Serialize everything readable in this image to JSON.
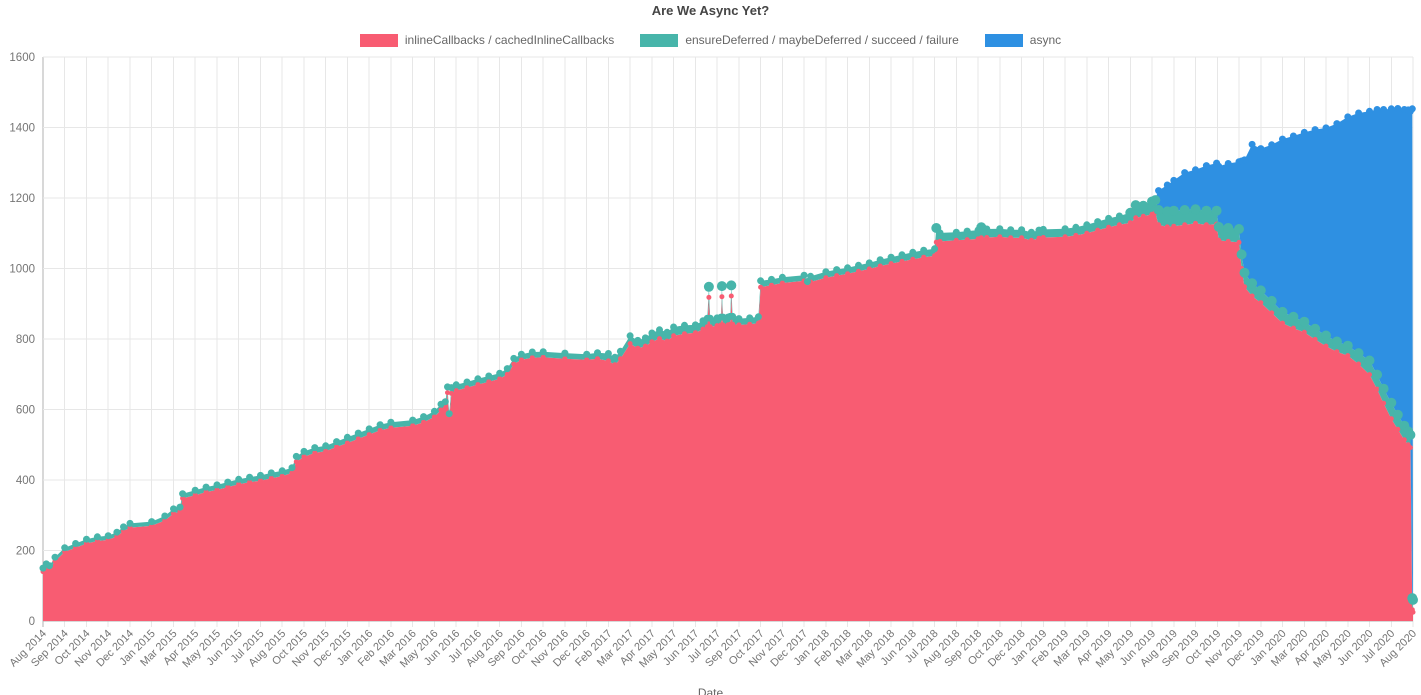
{
  "chart_data": {
    "type": "area",
    "stacked": true,
    "title": "Are We Async Yet?",
    "xlabel": "Date",
    "ylabel": "",
    "ylim": [
      0,
      1600
    ],
    "yticks": [
      0,
      200,
      400,
      600,
      800,
      1000,
      1200,
      1400,
      1600
    ],
    "grid": true,
    "legend_position": "top",
    "x_tick_labels": [
      "Aug 2014",
      "Sep 2014",
      "Oct 2014",
      "Nov 2014",
      "Dec 2014",
      "Jan 2015",
      "Mar 2015",
      "Apr 2015",
      "May 2015",
      "Jun 2015",
      "Jul 2015",
      "Aug 2015",
      "Oct 2015",
      "Nov 2015",
      "Dec 2015",
      "Jan 2016",
      "Feb 2016",
      "Mar 2016",
      "May 2016",
      "Jun 2016",
      "Jul 2016",
      "Aug 2016",
      "Sep 2016",
      "Oct 2016",
      "Nov 2016",
      "Dec 2016",
      "Feb 2017",
      "Mar 2017",
      "Apr 2017",
      "May 2017",
      "Jun 2017",
      "Jul 2017",
      "Sep 2017",
      "Oct 2017",
      "Nov 2017",
      "Dec 2017",
      "Jan 2018",
      "Feb 2018",
      "Mar 2018",
      "May 2018",
      "Jun 2018",
      "Jul 2018",
      "Aug 2018",
      "Sep 2018",
      "Oct 2018",
      "Dec 2018",
      "Jan 2019",
      "Feb 2019",
      "Mar 2019",
      "Apr 2019",
      "May 2019",
      "Jun 2019",
      "Aug 2019",
      "Sep 2019",
      "Oct 2019",
      "Nov 2019",
      "Dec 2019",
      "Jan 2020",
      "Mar 2020",
      "Apr 2020",
      "May 2020",
      "Jun 2020",
      "Jul 2020",
      "Aug 2020"
    ],
    "series": [
      {
        "name": "inlineCallbacks / cachedInlineCallbacks",
        "color": "#F85C72"
      },
      {
        "name": "ensureDeferred / maybeDeferred / succeed / failure",
        "color": "#47B5AA"
      },
      {
        "name": "async",
        "color": "#2E90E2"
      }
    ],
    "points_x_unit": "x_tick_label_index",
    "points_value_order": [
      "inlineCallbacks_band",
      "ensureDeferred_band",
      "async_band"
    ],
    "points": [
      [
        0,
        140,
        10,
        0
      ],
      [
        0.15,
        152,
        10,
        0
      ],
      [
        0.3,
        147,
        10,
        0
      ],
      [
        0.55,
        170,
        11,
        0
      ],
      [
        1,
        196,
        12,
        0
      ],
      [
        1.5,
        208,
        12,
        0
      ],
      [
        2,
        220,
        12,
        0
      ],
      [
        2.5,
        227,
        12,
        0
      ],
      [
        3,
        230,
        12,
        0
      ],
      [
        3.4,
        240,
        12,
        0
      ],
      [
        3.7,
        255,
        12,
        0
      ],
      [
        4,
        265,
        12,
        0
      ],
      [
        5,
        270,
        12,
        0
      ],
      [
        5.6,
        285,
        13,
        0
      ],
      [
        6,
        305,
        13,
        0
      ],
      [
        6.3,
        310,
        13,
        0
      ],
      [
        6.42,
        348,
        13,
        0
      ],
      [
        7,
        357,
        14,
        0
      ],
      [
        7.5,
        366,
        14,
        0
      ],
      [
        8,
        372,
        14,
        0
      ],
      [
        8.5,
        380,
        14,
        0
      ],
      [
        9,
        388,
        14,
        0
      ],
      [
        9.5,
        394,
        14,
        0
      ],
      [
        10,
        398,
        15,
        0
      ],
      [
        10.5,
        405,
        15,
        0
      ],
      [
        11,
        411,
        15,
        0
      ],
      [
        11.45,
        420,
        15,
        0
      ],
      [
        11.65,
        452,
        15,
        0
      ],
      [
        12,
        466,
        15,
        0
      ],
      [
        12.5,
        477,
        15,
        0
      ],
      [
        13,
        482,
        15,
        0
      ],
      [
        13.5,
        494,
        15,
        0
      ],
      [
        14,
        505,
        16,
        0
      ],
      [
        14.5,
        517,
        16,
        0
      ],
      [
        15,
        529,
        16,
        0
      ],
      [
        15.5,
        541,
        16,
        0
      ],
      [
        16,
        548,
        16,
        0
      ],
      [
        17,
        554,
        16,
        0
      ],
      [
        17.5,
        564,
        16,
        0
      ],
      [
        18,
        579,
        16,
        0
      ],
      [
        18.3,
        599,
        16,
        0
      ],
      [
        18.5,
        606,
        16,
        0
      ],
      [
        18.6,
        648,
        16,
        0
      ],
      [
        18.68,
        572,
        16,
        0
      ],
      [
        18.78,
        646,
        16,
        0
      ],
      [
        19,
        654,
        16,
        0
      ],
      [
        19.5,
        662,
        16,
        0
      ],
      [
        20,
        671,
        16,
        0
      ],
      [
        20.5,
        679,
        16,
        0
      ],
      [
        21,
        687,
        16,
        0
      ],
      [
        21.35,
        700,
        16,
        0
      ],
      [
        21.65,
        729,
        16,
        0
      ],
      [
        22,
        741,
        16,
        0
      ],
      [
        22.5,
        747,
        16,
        0
      ],
      [
        23,
        748,
        16,
        0
      ],
      [
        24,
        744,
        16,
        0
      ],
      [
        25,
        741,
        16,
        0
      ],
      [
        25.5,
        744,
        17,
        0
      ],
      [
        26,
        738,
        21,
        0
      ],
      [
        26.3,
        727,
        21,
        0
      ],
      [
        26.55,
        744,
        21,
        0
      ],
      [
        27,
        787,
        22,
        0
      ],
      [
        27.35,
        774,
        22,
        0
      ],
      [
        27.7,
        780,
        23,
        0
      ],
      [
        28,
        792,
        25,
        0
      ],
      [
        28.35,
        801,
        25,
        0
      ],
      [
        28.7,
        794,
        25,
        0
      ],
      [
        29,
        809,
        25,
        0
      ],
      [
        29.5,
        815,
        24,
        0
      ],
      [
        30,
        818,
        22,
        0
      ],
      [
        30.35,
        828,
        24,
        0
      ],
      [
        30.55,
        835,
        24,
        0
      ],
      [
        30.62,
        918,
        30,
        0
      ],
      [
        30.68,
        835,
        24,
        0
      ],
      [
        31,
        838,
        22,
        0
      ],
      [
        31.18,
        840,
        22,
        0
      ],
      [
        31.22,
        920,
        30,
        0
      ],
      [
        31.27,
        840,
        22,
        0
      ],
      [
        31.5,
        840,
        22,
        0
      ],
      [
        31.6,
        842,
        22,
        0
      ],
      [
        31.65,
        922,
        30,
        0
      ],
      [
        31.71,
        842,
        22,
        0
      ],
      [
        32,
        840,
        18,
        0
      ],
      [
        32.5,
        842,
        18,
        0
      ],
      [
        32.9,
        845,
        18,
        0
      ],
      [
        33,
        947,
        18,
        0
      ],
      [
        33.5,
        953,
        16,
        0
      ],
      [
        34,
        959,
        16,
        0
      ],
      [
        35,
        965,
        16,
        0
      ],
      [
        35.15,
        947,
        16,
        0
      ],
      [
        35.3,
        962,
        16,
        0
      ],
      [
        36,
        974,
        17,
        0
      ],
      [
        36.5,
        980,
        17,
        0
      ],
      [
        37,
        985,
        17,
        0
      ],
      [
        37.5,
        992,
        17,
        0
      ],
      [
        38,
        999,
        17,
        0
      ],
      [
        38.5,
        1007,
        18,
        0
      ],
      [
        39,
        1014,
        18,
        0
      ],
      [
        39.5,
        1020,
        19,
        0
      ],
      [
        40,
        1026,
        20,
        0
      ],
      [
        40.5,
        1032,
        20,
        0
      ],
      [
        41,
        1036,
        20,
        0
      ],
      [
        41.08,
        1075,
        40,
        0
      ],
      [
        41.25,
        1077,
        24,
        0
      ],
      [
        42,
        1080,
        23,
        0
      ],
      [
        42.5,
        1082,
        24,
        0
      ],
      [
        43,
        1084,
        25,
        0
      ],
      [
        43.15,
        1087,
        30,
        0
      ],
      [
        43.4,
        1088,
        24,
        0
      ],
      [
        44,
        1090,
        23,
        0
      ],
      [
        44.5,
        1087,
        23,
        0
      ],
      [
        45,
        1087,
        23,
        0
      ],
      [
        45.45,
        1080,
        23,
        0
      ],
      [
        45.8,
        1086,
        23,
        0
      ],
      [
        46,
        1088,
        23,
        0
      ],
      [
        47,
        1090,
        23,
        0
      ],
      [
        47.5,
        1094,
        23,
        0
      ],
      [
        48,
        1100,
        24,
        0
      ],
      [
        48.5,
        1109,
        24,
        0
      ],
      [
        49,
        1117,
        25,
        0
      ],
      [
        49.5,
        1124,
        25,
        0
      ],
      [
        50,
        1130,
        28,
        0
      ],
      [
        50.25,
        1144,
        36,
        0
      ],
      [
        50.6,
        1148,
        30,
        0
      ],
      [
        51,
        1154,
        36,
        0
      ],
      [
        51.15,
        1158,
        36,
        6
      ],
      [
        51.3,
        1124,
        42,
        55
      ],
      [
        51.7,
        1118,
        44,
        75
      ],
      [
        52,
        1120,
        44,
        86
      ],
      [
        52.5,
        1124,
        42,
        106
      ],
      [
        53,
        1128,
        40,
        112
      ],
      [
        53.5,
        1124,
        40,
        128
      ],
      [
        53.97,
        1126,
        38,
        135
      ],
      [
        54.07,
        1080,
        38,
        172
      ],
      [
        54.5,
        1077,
        38,
        183
      ],
      [
        55,
        1074,
        38,
        191
      ],
      [
        55.12,
        1000,
        40,
        265
      ],
      [
        55.25,
        948,
        40,
        320
      ],
      [
        55.6,
        922,
        36,
        394
      ],
      [
        56,
        903,
        35,
        402
      ],
      [
        56.5,
        874,
        34,
        443
      ],
      [
        57,
        845,
        32,
        490
      ],
      [
        57.5,
        831,
        32,
        513
      ],
      [
        58,
        819,
        30,
        537
      ],
      [
        58.5,
        799,
        30,
        565
      ],
      [
        59,
        780,
        30,
        589
      ],
      [
        59.5,
        764,
        29,
        618
      ],
      [
        60,
        753,
        28,
        649
      ],
      [
        60.5,
        729,
        31,
        681
      ],
      [
        61,
        699,
        40,
        707
      ],
      [
        61.35,
        658,
        41,
        752
      ],
      [
        61.65,
        618,
        41,
        792
      ],
      [
        62,
        574,
        45,
        834
      ],
      [
        62.3,
        544,
        41,
        869
      ],
      [
        62.6,
        514,
        40,
        897
      ],
      [
        62.78,
        500,
        38,
        912
      ],
      [
        62.88,
        492,
        36,
        918
      ],
      [
        62.97,
        32,
        33,
        1388
      ],
      [
        63,
        25,
        35,
        0
      ]
    ]
  }
}
